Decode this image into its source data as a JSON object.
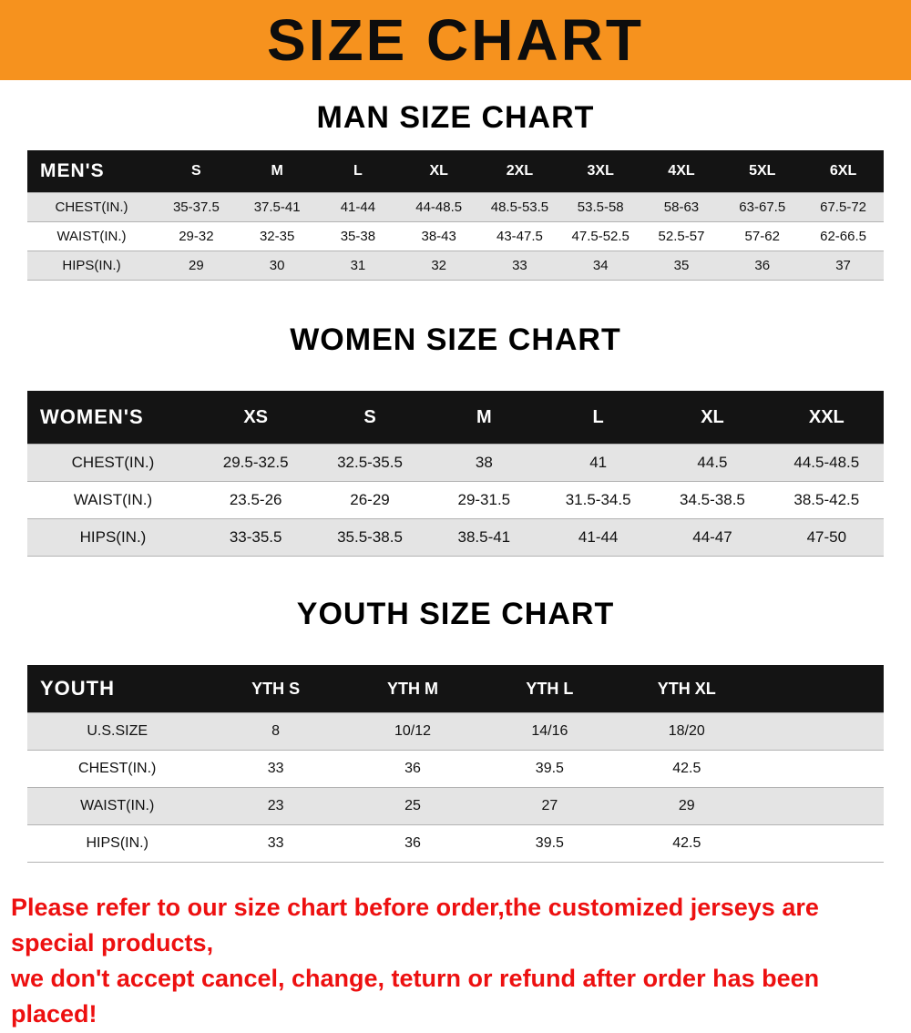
{
  "banner": {
    "title": "SIZE CHART"
  },
  "colors": {
    "banner_bg": "#F6921E",
    "header_bg": "#141414",
    "row_alt": "#e4e4e4",
    "footer_text": "#ed1010"
  },
  "tables": {
    "men": {
      "heading": "MAN SIZE CHART",
      "columns": [
        "MEN'S",
        "S",
        "M",
        "L",
        "XL",
        "2XL",
        "3XL",
        "4XL",
        "5XL",
        "6XL"
      ],
      "rows": [
        [
          "CHEST(IN.)",
          "35-37.5",
          "37.5-41",
          "41-44",
          "44-48.5",
          "48.5-53.5",
          "53.5-58",
          "58-63",
          "63-67.5",
          "67.5-72"
        ],
        [
          "WAIST(IN.)",
          "29-32",
          "32-35",
          "35-38",
          "38-43",
          "43-47.5",
          "47.5-52.5",
          "52.5-57",
          "57-62",
          "62-66.5"
        ],
        [
          "HIPS(IN.)",
          "29",
          "30",
          "31",
          "32",
          "33",
          "34",
          "35",
          "36",
          "37"
        ]
      ]
    },
    "women": {
      "heading": "WOMEN SIZE CHART",
      "columns": [
        "WOMEN'S",
        "XS",
        "S",
        "M",
        "L",
        "XL",
        "XXL"
      ],
      "rows": [
        [
          "CHEST(IN.)",
          "29.5-32.5",
          "32.5-35.5",
          "38",
          "41",
          "44.5",
          "44.5-48.5"
        ],
        [
          "WAIST(IN.)",
          "23.5-26",
          "26-29",
          "29-31.5",
          "31.5-34.5",
          "34.5-38.5",
          "38.5-42.5"
        ],
        [
          "HIPS(IN.)",
          "33-35.5",
          "35.5-38.5",
          "38.5-41",
          "41-44",
          "44-47",
          "47-50"
        ]
      ]
    },
    "youth": {
      "heading": "YOUTH SIZE CHART",
      "columns": [
        "YOUTH",
        "YTH S",
        "YTH M",
        "YTH L",
        "YTH XL"
      ],
      "rows": [
        [
          "U.S.SIZE",
          "8",
          "10/12",
          "14/16",
          "18/20"
        ],
        [
          "CHEST(IN.)",
          "33",
          "36",
          "39.5",
          "42.5"
        ],
        [
          "WAIST(IN.)",
          "23",
          "25",
          "27",
          "29"
        ],
        [
          "HIPS(IN.)",
          "33",
          "36",
          "39.5",
          "42.5"
        ]
      ]
    }
  },
  "footer": {
    "line1": "Please refer to our size chart before order,the customized jerseys are special products,",
    "line2": "we don't accept cancel, change, teturn or refund after order has been placed!"
  }
}
